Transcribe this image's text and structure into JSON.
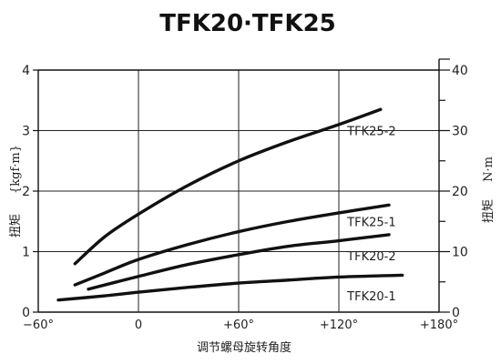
{
  "chart_data": {
    "type": "line",
    "title": "TFK20·TFK25",
    "xlabel": "调节螺母旋转角度",
    "ylabel_left_cn": "扭矩",
    "ylabel_left_unit": "{kgf·m}",
    "ylabel_right_cn": "扭矩",
    "ylabel_right_unit": "N·m",
    "x_ticks": [
      "−60°",
      "0",
      "+60°",
      "+120°",
      "+180°"
    ],
    "x_tick_values": [
      -60,
      0,
      60,
      120,
      180
    ],
    "xlim": [
      -60,
      180
    ],
    "y_left_ticks": [
      "0",
      "1",
      "2",
      "3",
      "4"
    ],
    "y_left_tick_values": [
      0,
      1,
      2,
      3,
      4
    ],
    "ylim_left": [
      0,
      4
    ],
    "y_right_ticks": [
      "0",
      "10",
      "20",
      "30",
      "40"
    ],
    "y_right_tick_values": [
      0,
      10,
      20,
      30,
      40
    ],
    "ylim_right": [
      0,
      40
    ],
    "grid": true,
    "series": [
      {
        "name": "TFK25-2",
        "x": [
          -38,
          -20,
          0,
          30,
          60,
          90,
          120,
          145
        ],
        "y": [
          0.8,
          1.25,
          1.62,
          2.1,
          2.5,
          2.82,
          3.1,
          3.35
        ]
      },
      {
        "name": "TFK25-1",
        "x": [
          -38,
          -20,
          0,
          30,
          60,
          90,
          120,
          150
        ],
        "y": [
          0.45,
          0.65,
          0.87,
          1.12,
          1.33,
          1.5,
          1.64,
          1.77
        ]
      },
      {
        "name": "TFK20-2",
        "x": [
          -30,
          0,
          30,
          60,
          90,
          120,
          150
        ],
        "y": [
          0.38,
          0.59,
          0.79,
          0.95,
          1.09,
          1.18,
          1.28
        ]
      },
      {
        "name": "TFK20-1",
        "x": [
          -48,
          -20,
          0,
          30,
          60,
          90,
          120,
          158
        ],
        "y": [
          0.2,
          0.27,
          0.33,
          0.41,
          0.48,
          0.53,
          0.58,
          0.61
        ]
      }
    ]
  }
}
